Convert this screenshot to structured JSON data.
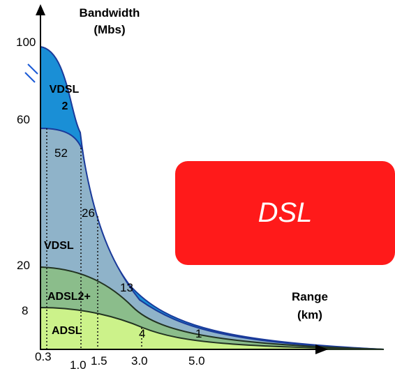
{
  "chart_data": {
    "type": "area",
    "y_axis_label": [
      "Bandwidth",
      "(Mbs)"
    ],
    "x_axis_label": [
      "Range",
      "(km)"
    ],
    "y_ticks": [
      "100",
      "60",
      "20",
      "8"
    ],
    "x_ticks": [
      "0.3",
      "1.0",
      "1.5",
      "3.0",
      "5.0"
    ],
    "series": [
      {
        "name": "VDSL 2",
        "name_lines": [
          "VDSL",
          "2"
        ],
        "color": "#1a8fd6",
        "peak": 100
      },
      {
        "name": "VDSL",
        "color": "#8fb3c9",
        "peak": 60
      },
      {
        "name": "ADSL2+",
        "color": "#8bbd8b",
        "peak": 20
      },
      {
        "name": "ADSL",
        "color": "#ccf28a",
        "peak": 8
      }
    ],
    "callouts": [
      "52",
      "26",
      "13",
      "4",
      "1"
    ],
    "axis_break": true
  },
  "badge": {
    "text": "DSL",
    "color": "#ff1a1a"
  }
}
